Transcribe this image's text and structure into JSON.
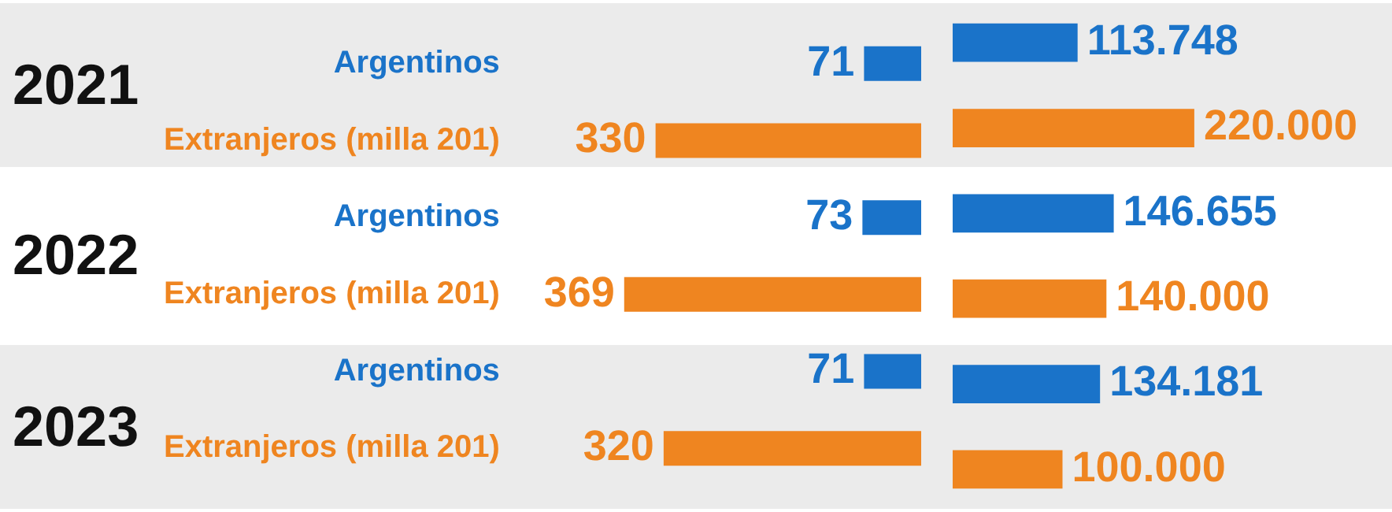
{
  "chart_data": [
    {
      "type": "bar",
      "orientation": "horizontal",
      "categories": [
        "Argentinos",
        "Extranjeros (milla 201)",
        "Argentinos",
        "Extranjeros (milla 201)",
        "Argentinos",
        "Extranjeros (milla 201)"
      ],
      "values": [
        71,
        330,
        73,
        369,
        71,
        320
      ],
      "colors": [
        "#1a73c9",
        "#ef8520",
        "#1a73c9",
        "#ef8520",
        "#1a73c9",
        "#ef8520"
      ],
      "data_labels": true,
      "tick_labels": "y",
      "annotations": [
        "2021",
        "2022",
        "2023"
      ]
    },
    {
      "type": "bar",
      "orientation": "horizontal",
      "categories": [
        null,
        null,
        null,
        null,
        null,
        null
      ],
      "values": [
        113748,
        220000,
        146655,
        140000,
        134181,
        100000
      ],
      "value_labels": [
        "113.748",
        "220.000",
        "146.655",
        "140.000",
        "134.181",
        "100.000"
      ],
      "colors": [
        "#1a73c9",
        "#ef8520",
        "#1a73c9",
        "#ef8520",
        "#1a73c9",
        "#ef8520"
      ],
      "tick_labels": false
    }
  ]
}
